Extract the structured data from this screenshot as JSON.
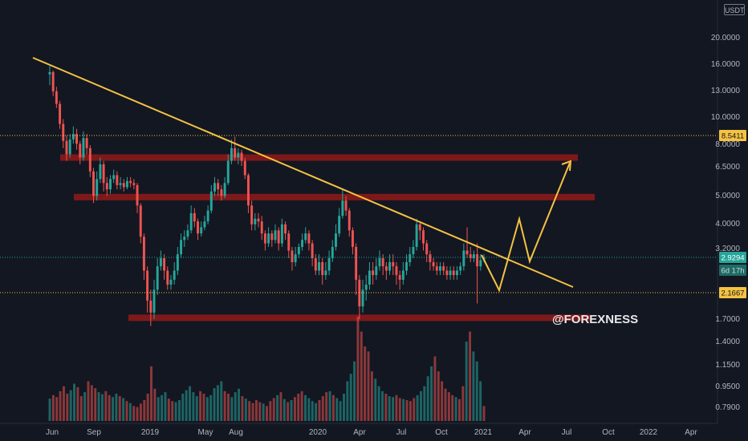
{
  "currency": "USDT",
  "watermark": "@FOREXNESS",
  "colors": {
    "background": "#131722",
    "up": "#26a69a",
    "down": "#ef5350",
    "trendline": "#f5c242",
    "zone": "#8b1a1a",
    "dotted_yellow": "#f5c242",
    "dotted_teal": "#26a69a"
  },
  "chart_data": {
    "type": "candlestick",
    "y_scale": "log",
    "y_ticks": [
      "20.0000",
      "16.0000",
      "13.0000",
      "10.0000",
      "8.0000",
      "6.5000",
      "5.0000",
      "4.0000",
      "3.2000",
      "1.7000",
      "1.4000",
      "1.1500",
      "0.9500",
      "0.7900"
    ],
    "x_ticks": [
      "Jun",
      "Sep",
      "2019",
      "May",
      "Aug",
      "2020",
      "Apr",
      "Jul",
      "Oct",
      "2021",
      "Apr",
      "Jul",
      "Oct",
      "2022",
      "Apr"
    ],
    "price_labels": {
      "resistance_high": "8.5411",
      "current": "2.9294",
      "countdown": "6d 17h",
      "support_low": "2.1667"
    },
    "zones": [
      {
        "name": "upper-resistance-zone",
        "price": 7.0
      },
      {
        "name": "mid-resistance-zone",
        "price": 4.95
      },
      {
        "name": "support-zone",
        "price": 1.72
      }
    ],
    "trendline": {
      "from": {
        "date": "2018-05",
        "price": 16.8
      },
      "to": {
        "date": "2021-07",
        "price": 2.3
      }
    },
    "projection": [
      3.0,
      2.2,
      4.1,
      2.6,
      6.7
    ],
    "candles": [
      [
        14.5,
        14.8,
        15.6,
        13.2
      ],
      [
        14.8,
        12.5,
        15.0,
        12.0
      ],
      [
        12.5,
        11.2,
        13.0,
        10.8
      ],
      [
        11.2,
        9.4,
        11.5,
        9.0
      ],
      [
        9.4,
        8.1,
        9.8,
        7.6
      ],
      [
        8.1,
        7.2,
        8.5,
        6.8
      ],
      [
        7.2,
        8.2,
        8.6,
        7.0
      ],
      [
        8.2,
        8.6,
        9.2,
        7.9
      ],
      [
        8.6,
        7.9,
        9.0,
        7.5
      ],
      [
        7.9,
        7.0,
        8.1,
        6.6
      ],
      [
        7.0,
        8.3,
        8.8,
        6.8
      ],
      [
        8.3,
        7.6,
        8.6,
        7.2
      ],
      [
        7.6,
        6.2,
        7.8,
        5.9
      ],
      [
        6.2,
        5.0,
        6.4,
        4.7
      ],
      [
        5.0,
        5.8,
        6.2,
        4.8
      ],
      [
        5.8,
        6.6,
        7.0,
        5.6
      ],
      [
        6.6,
        5.6,
        6.8,
        5.2
      ],
      [
        5.6,
        5.3,
        5.9,
        5.0
      ],
      [
        5.3,
        5.8,
        6.0,
        5.1
      ],
      [
        5.8,
        6.0,
        6.3,
        5.6
      ],
      [
        6.0,
        5.5,
        6.2,
        5.3
      ],
      [
        5.5,
        5.6,
        5.9,
        5.3
      ],
      [
        5.6,
        5.4,
        5.8,
        5.2
      ],
      [
        5.4,
        5.7,
        5.9,
        5.3
      ],
      [
        5.7,
        5.6,
        5.9,
        5.4
      ],
      [
        5.6,
        5.5,
        5.8,
        5.3
      ],
      [
        5.5,
        4.6,
        5.6,
        4.3
      ],
      [
        4.6,
        3.5,
        4.7,
        3.3
      ],
      [
        3.5,
        2.6,
        3.6,
        2.4
      ],
      [
        2.6,
        2.0,
        2.7,
        1.8
      ],
      [
        2.0,
        1.8,
        2.2,
        1.6
      ],
      [
        1.8,
        2.2,
        2.4,
        1.7
      ],
      [
        2.2,
        2.7,
        2.9,
        2.1
      ],
      [
        2.7,
        2.9,
        3.1,
        2.6
      ],
      [
        2.9,
        2.6,
        3.0,
        2.4
      ],
      [
        2.6,
        2.3,
        2.7,
        2.2
      ],
      [
        2.3,
        2.4,
        2.5,
        2.2
      ],
      [
        2.4,
        2.6,
        2.8,
        2.3
      ],
      [
        2.6,
        3.0,
        3.2,
        2.5
      ],
      [
        3.0,
        3.4,
        3.6,
        2.9
      ],
      [
        3.4,
        3.5,
        3.7,
        3.2
      ],
      [
        3.5,
        3.7,
        3.9,
        3.4
      ],
      [
        3.7,
        4.3,
        4.6,
        3.6
      ],
      [
        4.3,
        4.0,
        4.5,
        3.8
      ],
      [
        4.0,
        3.6,
        4.1,
        3.4
      ],
      [
        3.6,
        3.8,
        4.0,
        3.5
      ],
      [
        3.8,
        4.0,
        4.2,
        3.7
      ],
      [
        4.0,
        4.4,
        4.6,
        3.9
      ],
      [
        4.4,
        5.2,
        5.5,
        4.3
      ],
      [
        5.2,
        5.6,
        5.9,
        5.0
      ],
      [
        5.6,
        5.3,
        5.8,
        5.0
      ],
      [
        5.3,
        5.0,
        5.5,
        4.8
      ],
      [
        5.0,
        5.6,
        5.9,
        4.9
      ],
      [
        5.6,
        6.8,
        7.2,
        5.5
      ],
      [
        6.8,
        7.6,
        8.2,
        6.6
      ],
      [
        7.6,
        7.0,
        8.4,
        6.8
      ],
      [
        7.0,
        7.3,
        7.6,
        6.6
      ],
      [
        7.3,
        6.8,
        7.5,
        6.5
      ],
      [
        6.8,
        6.0,
        7.0,
        5.8
      ],
      [
        6.0,
        4.6,
        6.1,
        4.3
      ],
      [
        4.6,
        3.9,
        4.8,
        3.7
      ],
      [
        3.9,
        4.1,
        4.3,
        3.7
      ],
      [
        4.1,
        4.0,
        4.3,
        3.8
      ],
      [
        4.0,
        3.6,
        4.2,
        3.4
      ],
      [
        3.6,
        3.3,
        3.7,
        3.1
      ],
      [
        3.3,
        3.6,
        3.8,
        3.2
      ],
      [
        3.6,
        3.4,
        3.7,
        3.2
      ],
      [
        3.4,
        3.7,
        3.9,
        3.3
      ],
      [
        3.7,
        3.3,
        3.8,
        3.1
      ],
      [
        3.3,
        3.9,
        4.1,
        3.2
      ],
      [
        3.9,
        3.6,
        4.0,
        3.4
      ],
      [
        3.6,
        3.1,
        3.7,
        2.9
      ],
      [
        3.1,
        2.8,
        3.2,
        2.6
      ],
      [
        2.8,
        3.0,
        3.2,
        2.7
      ],
      [
        3.0,
        3.2,
        3.3,
        2.9
      ],
      [
        3.2,
        3.4,
        3.6,
        3.1
      ],
      [
        3.4,
        3.6,
        3.8,
        3.3
      ],
      [
        3.6,
        3.3,
        3.7,
        3.1
      ],
      [
        3.3,
        2.9,
        3.4,
        2.7
      ],
      [
        2.9,
        2.6,
        3.0,
        2.5
      ],
      [
        2.6,
        2.8,
        3.0,
        2.5
      ],
      [
        2.8,
        2.5,
        2.9,
        2.3
      ],
      [
        2.5,
        2.6,
        2.8,
        2.4
      ],
      [
        2.6,
        2.9,
        3.1,
        2.5
      ],
      [
        2.9,
        3.2,
        3.4,
        2.8
      ],
      [
        3.2,
        3.6,
        3.9,
        3.1
      ],
      [
        3.6,
        4.2,
        4.5,
        3.5
      ],
      [
        4.2,
        4.8,
        5.3,
        4.1
      ],
      [
        4.8,
        4.4,
        5.0,
        4.2
      ],
      [
        4.4,
        3.7,
        4.5,
        3.5
      ],
      [
        3.7,
        3.2,
        3.8,
        3.0
      ],
      [
        3.2,
        2.4,
        3.3,
        2.1
      ],
      [
        2.4,
        1.9,
        2.5,
        1.7
      ],
      [
        1.9,
        2.2,
        2.4,
        1.8
      ],
      [
        2.2,
        2.3,
        2.5,
        2.0
      ],
      [
        2.3,
        2.6,
        2.8,
        2.2
      ],
      [
        2.6,
        2.5,
        2.8,
        2.3
      ],
      [
        2.5,
        2.7,
        2.9,
        2.4
      ],
      [
        2.7,
        2.9,
        3.1,
        2.6
      ],
      [
        2.9,
        2.7,
        3.0,
        2.5
      ],
      [
        2.7,
        2.6,
        2.8,
        2.4
      ],
      [
        2.6,
        2.8,
        3.0,
        2.5
      ],
      [
        2.8,
        2.7,
        3.0,
        2.5
      ],
      [
        2.7,
        2.5,
        2.8,
        2.3
      ],
      [
        2.5,
        2.4,
        2.6,
        2.2
      ],
      [
        2.4,
        2.6,
        2.8,
        2.3
      ],
      [
        2.6,
        2.8,
        3.0,
        2.5
      ],
      [
        2.8,
        3.0,
        3.2,
        2.7
      ],
      [
        3.0,
        3.2,
        3.4,
        2.9
      ],
      [
        3.2,
        3.9,
        4.1,
        3.1
      ],
      [
        3.9,
        3.7,
        4.0,
        3.4
      ],
      [
        3.7,
        3.3,
        3.8,
        3.1
      ],
      [
        3.3,
        3.0,
        3.4,
        2.8
      ],
      [
        3.0,
        2.8,
        3.1,
        2.6
      ],
      [
        2.8,
        2.7,
        2.9,
        2.6
      ],
      [
        2.7,
        2.6,
        2.8,
        2.5
      ],
      [
        2.6,
        2.7,
        2.8,
        2.5
      ],
      [
        2.7,
        2.6,
        2.8,
        2.5
      ],
      [
        2.6,
        2.5,
        2.7,
        2.4
      ],
      [
        2.5,
        2.6,
        2.7,
        2.4
      ],
      [
        2.6,
        2.5,
        2.7,
        2.4
      ],
      [
        2.5,
        2.6,
        2.7,
        2.4
      ],
      [
        2.6,
        2.7,
        2.8,
        2.5
      ],
      [
        2.7,
        3.1,
        3.3,
        2.6
      ],
      [
        3.1,
        3.0,
        3.8,
        2.9
      ],
      [
        3.0,
        2.9,
        3.2,
        2.8
      ],
      [
        2.9,
        3.0,
        3.1,
        2.8
      ],
      [
        3.0,
        2.7,
        3.3,
        1.95
      ],
      [
        2.7,
        2.85,
        3.0,
        2.6
      ],
      [
        2.85,
        2.93,
        3.0,
        2.8
      ]
    ],
    "volumes": [
      45,
      52,
      48,
      60,
      70,
      55,
      62,
      75,
      68,
      50,
      58,
      80,
      72,
      66,
      58,
      54,
      60,
      52,
      48,
      55,
      50,
      46,
      40,
      36,
      30,
      28,
      35,
      42,
      55,
      110,
      65,
      48,
      52,
      58,
      45,
      40,
      38,
      42,
      55,
      62,
      70,
      58,
      50,
      60,
      55,
      48,
      52,
      66,
      72,
      80,
      60,
      55,
      48,
      58,
      65,
      50,
      45,
      40,
      36,
      42,
      38,
      35,
      30,
      40,
      46,
      52,
      58,
      44,
      38,
      42,
      48,
      55,
      60,
      52,
      46,
      40,
      36,
      42,
      50,
      58,
      60,
      52,
      46,
      40,
      55,
      80,
      95,
      120,
      210,
      180,
      150,
      140,
      100,
      85,
      70,
      60,
      55,
      50,
      48,
      52,
      46,
      44,
      42,
      40,
      46,
      52,
      60,
      70,
      90,
      110,
      130,
      100,
      80,
      65,
      58,
      52,
      48,
      44,
      70,
      160,
      180,
      140,
      120,
      80,
      30
    ]
  }
}
